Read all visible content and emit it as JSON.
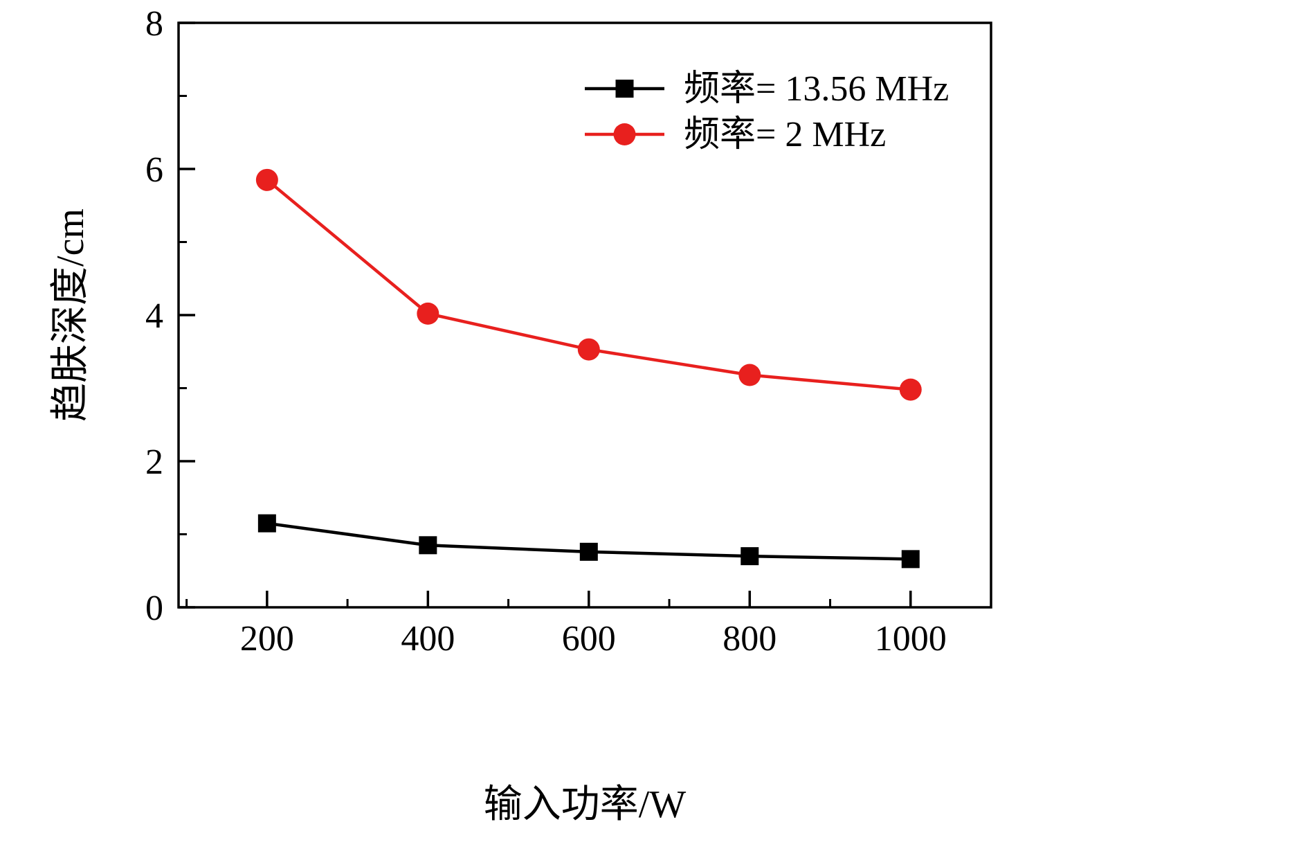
{
  "chart_data": {
    "type": "line",
    "x": [
      200,
      400,
      600,
      800,
      1000
    ],
    "series": [
      {
        "name": "频率= 13.56 MHz",
        "color": "#000000",
        "marker": "square",
        "values": [
          1.15,
          0.85,
          0.76,
          0.7,
          0.66
        ]
      },
      {
        "name": "频率= 2 MHz",
        "color": "#e8201e",
        "marker": "circle",
        "values": [
          5.85,
          4.02,
          3.53,
          3.18,
          2.98
        ]
      }
    ],
    "title": "",
    "xlabel": "输入功率/W",
    "ylabel": "趋肤深度/cm",
    "xlim": [
      90,
      1100
    ],
    "ylim": [
      0,
      8
    ],
    "x_major_ticks": [
      200,
      400,
      600,
      800,
      1000
    ],
    "x_minor_ticks": [
      100,
      300,
      500,
      700,
      900,
      1100
    ],
    "y_major_ticks": [
      0,
      2,
      4,
      6,
      8
    ],
    "y_minor_ticks": [
      1,
      3,
      5,
      7
    ],
    "grid": false,
    "legend_position": "upper-right",
    "frame_color": "#000000"
  }
}
